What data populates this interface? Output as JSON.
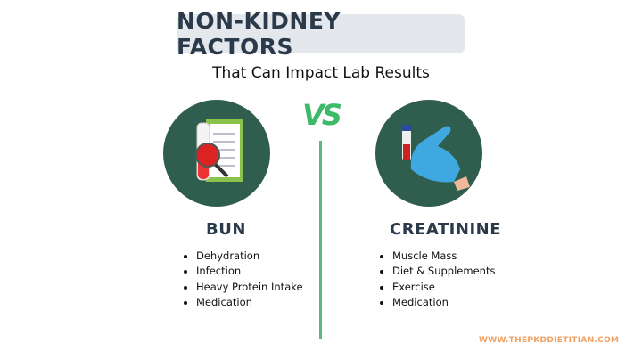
{
  "title": "NON-KIDNEY FACTORS",
  "subtitle": "That Can Impact Lab Results",
  "vs": "VS",
  "left": {
    "heading": "BUN",
    "icon": "blood-test-clipboard-magnifier-icon",
    "items": [
      "Dehydration",
      "Infection",
      "Heavy Protein Intake",
      "Medication"
    ]
  },
  "right": {
    "heading": "CREATININE",
    "icon": "gloved-hand-holding-test-tube-icon",
    "items": [
      "Muscle Mass",
      "Diet & Supplements",
      "Exercise",
      "Medication"
    ]
  },
  "website": "WWW.THEPKDDIETITIAN.COM",
  "colors": {
    "circle": "#2f5e4e",
    "accent": "#3cba6a",
    "website": "#f0a060"
  }
}
